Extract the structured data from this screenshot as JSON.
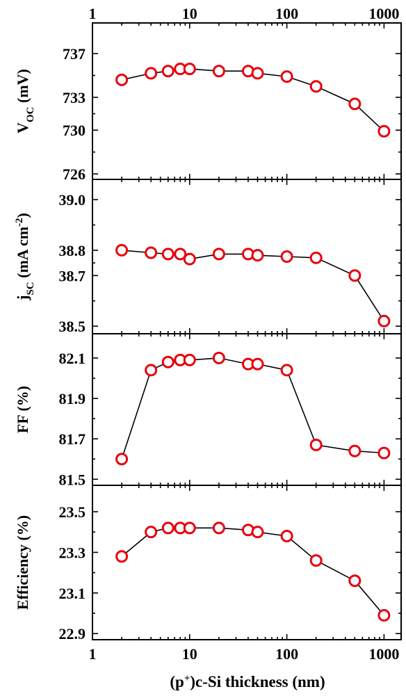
{
  "chart_data": {
    "type": "line",
    "xscale": "log",
    "xlabel": "(p+)c-Si thickness (nm)",
    "xlabel_parts": {
      "base": "(p",
      "sup": "+",
      "rest": ")c-Si thickness (nm)"
    },
    "xlim": [
      1,
      1500
    ],
    "xticks": [
      "1",
      "10",
      "100",
      "1000"
    ],
    "x": [
      2,
      4,
      6,
      8,
      10,
      20,
      40,
      50,
      100,
      200,
      500,
      1000
    ],
    "colors": {
      "marker": "#e8000b",
      "line": "#000000",
      "frame": "#000000"
    },
    "panels": [
      {
        "key": "voc",
        "ylabel": "VOC (mV)",
        "ylabel_parts": {
          "base": "V",
          "sub": "OC",
          "rest": " (mV)"
        },
        "ylim": [
          725.5,
          739.8
        ],
        "yticks": [
          {
            "value": 726,
            "label": "726"
          },
          {
            "value": 730,
            "label": "730"
          },
          {
            "value": 733,
            "label": "733"
          },
          {
            "value": 737,
            "label": "737"
          }
        ],
        "values": [
          734.6,
          735.2,
          735.4,
          735.6,
          735.6,
          735.4,
          735.4,
          735.2,
          734.9,
          734.0,
          732.4,
          729.9
        ]
      },
      {
        "key": "jsc",
        "ylabel": "jSC (mA cm-2)",
        "ylabel_parts": {
          "base": "j",
          "sub": "SC",
          "rest": " (mA cm",
          "sup": "-2",
          "end": ")"
        },
        "ylim": [
          38.47,
          39.08
        ],
        "yticks": [
          {
            "value": 38.5,
            "label": "38.5"
          },
          {
            "value": 38.7,
            "label": "38.7"
          },
          {
            "value": 38.8,
            "label": "38.8"
          },
          {
            "value": 39.0,
            "label": "39.0"
          }
        ],
        "values": [
          38.8,
          38.79,
          38.785,
          38.785,
          38.765,
          38.785,
          38.785,
          38.78,
          38.775,
          38.77,
          38.7,
          38.52
        ]
      },
      {
        "key": "ff",
        "ylabel": "FF (%)",
        "ylim": [
          81.47,
          82.22
        ],
        "yticks": [
          {
            "value": 81.5,
            "label": "81.5"
          },
          {
            "value": 81.7,
            "label": "81.7"
          },
          {
            "value": 81.9,
            "label": "81.9"
          },
          {
            "value": 82.1,
            "label": "82.1"
          }
        ],
        "values": [
          81.6,
          82.04,
          82.08,
          82.09,
          82.09,
          82.1,
          82.07,
          82.07,
          82.04,
          81.67,
          81.64,
          81.63
        ]
      },
      {
        "key": "efficiency",
        "ylabel": "Efficiency (%)",
        "ylim": [
          22.87,
          23.63
        ],
        "yticks": [
          {
            "value": 22.9,
            "label": "22.9"
          },
          {
            "value": 23.1,
            "label": "23.1"
          },
          {
            "value": 23.3,
            "label": "23.3"
          },
          {
            "value": 23.5,
            "label": "23.5"
          }
        ],
        "values": [
          23.28,
          23.4,
          23.42,
          23.42,
          23.42,
          23.42,
          23.41,
          23.4,
          23.38,
          23.26,
          23.16,
          22.99
        ]
      }
    ]
  }
}
